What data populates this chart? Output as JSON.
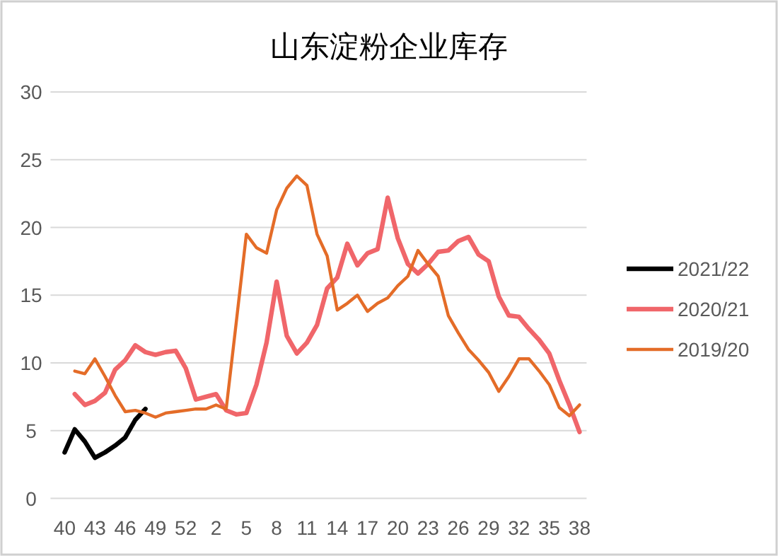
{
  "chart_data": {
    "type": "line",
    "title": "山东淀粉企业库存",
    "categories": [
      "40",
      null,
      null,
      "43",
      null,
      null,
      "46",
      null,
      null,
      "49",
      null,
      null,
      "52",
      null,
      null,
      "2",
      null,
      null,
      "5",
      null,
      null,
      "8",
      null,
      null,
      "11",
      null,
      null,
      "14",
      null,
      null,
      "17",
      null,
      null,
      "20",
      null,
      null,
      "23",
      null,
      null,
      "26",
      null,
      null,
      "29",
      null,
      null,
      "32",
      null,
      null,
      "35",
      null,
      null,
      "38"
    ],
    "ylim": [
      0,
      30
    ],
    "yticks": [
      0,
      5,
      10,
      15,
      20,
      25,
      30
    ],
    "grid": "y",
    "legend": "right",
    "marker": "none",
    "line_style": "solid",
    "series": [
      {
        "name": "2021/22",
        "color": "#000000",
        "values": [
          3.4,
          5.1,
          4.2,
          3.0,
          3.4,
          3.9,
          4.5,
          5.8,
          6.6,
          null,
          null,
          null,
          null,
          null,
          null,
          null,
          null,
          null,
          null,
          null,
          null,
          null,
          null,
          null,
          null,
          null,
          null,
          null,
          null,
          null,
          null,
          null,
          null,
          null,
          null,
          null,
          null,
          null,
          null,
          null,
          null,
          null,
          null,
          null,
          null,
          null,
          null,
          null,
          null,
          null,
          null,
          null
        ]
      },
      {
        "name": "2020/21",
        "color": "#f0666a",
        "values": [
          null,
          7.7,
          6.9,
          7.2,
          7.8,
          9.5,
          10.2,
          11.3,
          10.8,
          10.6,
          10.8,
          10.9,
          9.6,
          7.3,
          7.5,
          7.7,
          6.5,
          6.2,
          6.3,
          8.4,
          11.5,
          16.0,
          12.0,
          10.7,
          11.5,
          12.8,
          15.5,
          16.3,
          18.8,
          17.2,
          18.1,
          18.4,
          22.2,
          19.2,
          17.3,
          16.6,
          17.3,
          18.2,
          18.3,
          19.0,
          19.3,
          18.0,
          17.5,
          14.9,
          13.5,
          13.4,
          12.5,
          11.7,
          10.7,
          8.7,
          6.9,
          4.9
        ]
      },
      {
        "name": "2019/20",
        "color": "#e46c28",
        "values": [
          null,
          9.4,
          9.2,
          10.3,
          9.0,
          7.6,
          6.4,
          6.5,
          6.3,
          6.0,
          6.3,
          6.4,
          6.5,
          6.6,
          6.6,
          6.9,
          6.6,
          13.0,
          19.5,
          18.5,
          18.1,
          21.3,
          22.9,
          23.8,
          23.1,
          19.5,
          17.9,
          13.9,
          14.4,
          15.0,
          13.8,
          14.4,
          14.8,
          15.7,
          16.4,
          18.3,
          17.3,
          16.4,
          13.5,
          12.2,
          11.0,
          10.2,
          9.3,
          7.9,
          9.0,
          10.3,
          10.3,
          9.4,
          8.4,
          6.7,
          6.1,
          6.9
        ]
      }
    ]
  }
}
